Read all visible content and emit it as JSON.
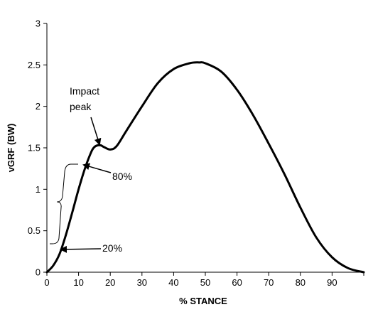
{
  "chart_data": {
    "type": "line",
    "title": "",
    "xlabel": "% STANCE",
    "ylabel": "vGRF (BW)",
    "xlim": [
      0,
      100
    ],
    "ylim": [
      0,
      3
    ],
    "xticks": [
      0,
      10,
      20,
      30,
      40,
      50,
      60,
      70,
      80,
      90
    ],
    "yticks": [
      0,
      0.5,
      1,
      1.5,
      2,
      2.5,
      3
    ],
    "grid": false,
    "legend": "none",
    "series": [
      {
        "color": "#000000",
        "x": [
          0,
          2,
          4,
          6,
          8,
          10,
          12,
          14,
          15,
          16,
          17,
          18,
          20,
          22,
          25,
          30,
          35,
          40,
          45,
          48,
          50,
          55,
          60,
          65,
          70,
          75,
          80,
          85,
          90,
          95,
          100
        ],
        "y": [
          0,
          0.08,
          0.22,
          0.45,
          0.72,
          1.0,
          1.25,
          1.45,
          1.51,
          1.53,
          1.53,
          1.51,
          1.48,
          1.52,
          1.7,
          2.0,
          2.28,
          2.45,
          2.52,
          2.53,
          2.52,
          2.42,
          2.2,
          1.9,
          1.55,
          1.18,
          0.78,
          0.42,
          0.18,
          0.05,
          0
        ]
      }
    ],
    "annotations": [
      {
        "label": "Impact peak",
        "lines": [
          "Impact",
          "peak"
        ],
        "target": [
          16,
          1.53
        ]
      },
      {
        "label": "80%",
        "target": [
          12,
          1.3
        ]
      },
      {
        "label": "20%",
        "target": [
          4,
          0.27
        ]
      }
    ]
  }
}
